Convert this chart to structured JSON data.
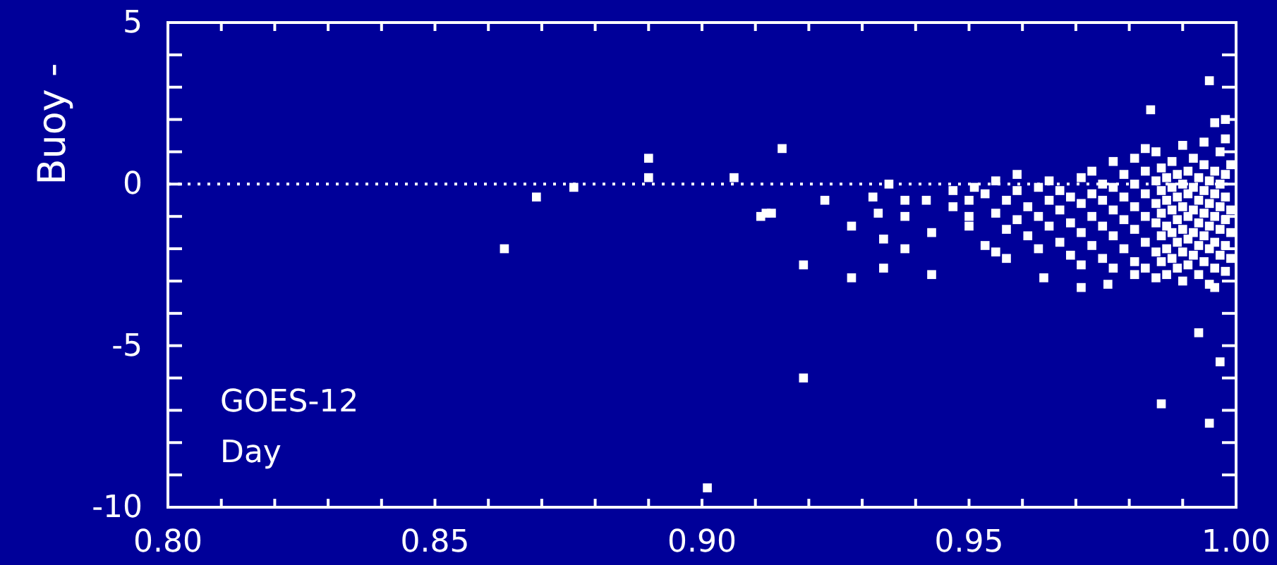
{
  "chart_data": {
    "type": "scatter",
    "ylabel": "Buoy -",
    "annotations": [
      "GOES-12",
      "Day"
    ],
    "xlim": [
      0.8,
      1.0
    ],
    "ylim": [
      -10,
      5
    ],
    "xticks": [
      {
        "value": 0.8,
        "label": "0.80"
      },
      {
        "value": 0.81,
        "label": null
      },
      {
        "value": 0.82,
        "label": null
      },
      {
        "value": 0.83,
        "label": null
      },
      {
        "value": 0.84,
        "label": null
      },
      {
        "value": 0.85,
        "label": "0.85"
      },
      {
        "value": 0.86,
        "label": null
      },
      {
        "value": 0.87,
        "label": null
      },
      {
        "value": 0.88,
        "label": null
      },
      {
        "value": 0.89,
        "label": null
      },
      {
        "value": 0.9,
        "label": "0.90"
      },
      {
        "value": 0.91,
        "label": null
      },
      {
        "value": 0.92,
        "label": null
      },
      {
        "value": 0.93,
        "label": null
      },
      {
        "value": 0.94,
        "label": null
      },
      {
        "value": 0.95,
        "label": "0.95"
      },
      {
        "value": 0.96,
        "label": null
      },
      {
        "value": 0.97,
        "label": null
      },
      {
        "value": 0.98,
        "label": null
      },
      {
        "value": 0.99,
        "label": null
      },
      {
        "value": 1.0,
        "label": "1.00"
      }
    ],
    "yticks": [
      -10,
      {
        "value": -9,
        "label": null
      },
      {
        "value": -8,
        "label": null
      },
      {
        "value": -7,
        "label": null
      },
      {
        "value": -6,
        "label": null
      },
      -5,
      {
        "value": -4,
        "label": null
      },
      {
        "value": -3,
        "label": null
      },
      {
        "value": -2,
        "label": null
      },
      {
        "value": -1,
        "label": null
      },
      0,
      {
        "value": 1,
        "label": null
      },
      {
        "value": 2,
        "label": null
      },
      {
        "value": 3,
        "label": null
      },
      {
        "value": 4,
        "label": null
      },
      5
    ],
    "grid": false,
    "marker": "square",
    "ref_lines": [
      {
        "axis": "y",
        "value": 0,
        "color": "#ffffff",
        "line_style": "dotted"
      }
    ],
    "series": [
      {
        "color": "#ffffff",
        "x": [
          0.863,
          0.869,
          0.876,
          0.89,
          0.89,
          0.901,
          0.906,
          0.911,
          0.912,
          0.913,
          0.915,
          0.919,
          0.919,
          0.923,
          0.928,
          0.928,
          0.932,
          0.933,
          0.934,
          0.934,
          0.935,
          0.938,
          0.938,
          0.938,
          0.942,
          0.943,
          0.943,
          0.947,
          0.947,
          0.951,
          0.964,
          0.971,
          0.976,
          0.981,
          0.983,
          0.984,
          0.986,
          0.993,
          0.995,
          0.995,
          0.996,
          0.996,
          0.997,
          0.998,
          0.998,
          0.95,
          0.95,
          0.95,
          0.953,
          0.953,
          0.955,
          0.955,
          0.955,
          0.957,
          0.957,
          0.957,
          0.959,
          0.959,
          0.959,
          0.961,
          0.961,
          0.963,
          0.963,
          0.963,
          0.965,
          0.965,
          0.965,
          0.967,
          0.967,
          0.967,
          0.969,
          0.969,
          0.969,
          0.971,
          0.971,
          0.971,
          0.971,
          0.973,
          0.973,
          0.973,
          0.973,
          0.975,
          0.975,
          0.975,
          0.975,
          0.977,
          0.977,
          0.977,
          0.977,
          0.977,
          0.979,
          0.979,
          0.979,
          0.979,
          0.981,
          0.981,
          0.981,
          0.981,
          0.981,
          0.983,
          0.983,
          0.983,
          0.983,
          0.983,
          0.985,
          0.985,
          0.985,
          0.985,
          0.985,
          0.985,
          0.986,
          0.986,
          0.986,
          0.986,
          0.986,
          0.987,
          0.987,
          0.987,
          0.987,
          0.987,
          0.988,
          0.988,
          0.988,
          0.988,
          0.988,
          0.989,
          0.989,
          0.989,
          0.989,
          0.989,
          0.99,
          0.99,
          0.99,
          0.99,
          0.99,
          0.99,
          0.991,
          0.991,
          0.991,
          0.991,
          0.991,
          0.992,
          0.992,
          0.992,
          0.992,
          0.992,
          0.993,
          0.993,
          0.993,
          0.993,
          0.993,
          0.994,
          0.994,
          0.994,
          0.994,
          0.994,
          0.994,
          0.995,
          0.995,
          0.995,
          0.995,
          0.995,
          0.996,
          0.996,
          0.996,
          0.996,
          0.996,
          0.997,
          0.997,
          0.997,
          0.997,
          0.997,
          0.998,
          0.998,
          0.998,
          0.998,
          0.998,
          0.999,
          0.999,
          0.999,
          0.999
        ],
        "values": [
          -2.0,
          -0.4,
          -0.1,
          0.8,
          0.2,
          -9.4,
          0.2,
          -1.0,
          -0.9,
          -0.9,
          1.1,
          -2.5,
          -6.0,
          -0.5,
          -1.3,
          -2.9,
          -0.4,
          -0.9,
          -1.7,
          -2.6,
          0.0,
          -0.5,
          -1.0,
          -2.0,
          -0.5,
          -1.5,
          -2.8,
          -0.2,
          -0.7,
          -0.1,
          -2.9,
          -3.2,
          -3.1,
          -2.8,
          1.1,
          2.3,
          -6.8,
          -4.6,
          3.2,
          -7.4,
          1.9,
          -3.2,
          -5.5,
          2.0,
          1.4,
          -0.5,
          -1.0,
          -1.3,
          -0.3,
          -1.9,
          -0.9,
          -2.1,
          0.1,
          -0.5,
          -1.4,
          -2.3,
          -0.2,
          -1.1,
          0.3,
          -0.7,
          -1.6,
          -0.1,
          -1.0,
          -2.0,
          -0.5,
          -1.3,
          0.1,
          -0.8,
          -1.8,
          -0.2,
          -0.4,
          -1.2,
          -2.2,
          0.2,
          -0.6,
          -1.5,
          -2.5,
          -0.3,
          -1.0,
          -1.9,
          0.4,
          -0.5,
          -1.3,
          -2.3,
          0.0,
          -0.1,
          -0.8,
          -1.6,
          -2.6,
          0.7,
          -0.4,
          -1.1,
          -2.0,
          0.3,
          0.0,
          -0.7,
          -1.4,
          -2.4,
          0.8,
          -0.3,
          -1.0,
          -1.8,
          -2.6,
          0.4,
          0.1,
          -0.6,
          -1.2,
          -2.1,
          -2.9,
          1.0,
          -0.2,
          -0.9,
          -1.6,
          -2.4,
          0.5,
          0.2,
          -0.5,
          -1.3,
          -2.0,
          -2.8,
          -0.1,
          -0.8,
          -1.5,
          -2.3,
          0.7,
          0.3,
          -0.4,
          -1.1,
          -1.8,
          -2.6,
          0.0,
          -0.7,
          -1.4,
          -2.1,
          -3.0,
          1.2,
          0.4,
          -0.3,
          -1.0,
          -1.7,
          -2.5,
          -0.1,
          -0.8,
          -1.5,
          -2.2,
          0.8,
          0.2,
          -0.5,
          -1.2,
          -1.9,
          -2.8,
          -0.2,
          -0.9,
          -1.6,
          -2.4,
          0.6,
          1.3,
          0.1,
          -0.6,
          -1.3,
          -2.0,
          -3.1,
          -0.3,
          -1.0,
          -1.8,
          -2.6,
          0.4,
          0.0,
          -0.7,
          -1.4,
          -2.2,
          1.0,
          -0.4,
          -1.1,
          -1.9,
          -2.7,
          0.3,
          -0.8,
          -1.5,
          -2.3,
          0.6
        ]
      }
    ]
  }
}
